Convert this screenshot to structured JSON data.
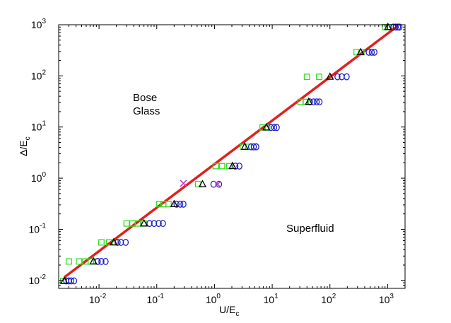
{
  "chart_data": {
    "type": "scatter",
    "xscale": "log",
    "yscale": "log",
    "xlim": [
      0.002,
      2000
    ],
    "ylim": [
      0.007,
      1000
    ],
    "xlabel": "U/E",
    "xlabel_sub": "c",
    "ylabel": "Δ/E",
    "ylabel_sub": "c",
    "xticks": [
      {
        "value": 0.01,
        "base": "10",
        "exp": "-2"
      },
      {
        "value": 0.1,
        "base": "10",
        "exp": "-1"
      },
      {
        "value": 1,
        "base": "10",
        "exp": "0"
      },
      {
        "value": 10,
        "base": "10",
        "exp": "1"
      },
      {
        "value": 100,
        "base": "10",
        "exp": "2"
      },
      {
        "value": 1000,
        "base": "10",
        "exp": "3"
      }
    ],
    "yticks": [
      {
        "value": 0.01,
        "base": "10",
        "exp": "-2"
      },
      {
        "value": 0.1,
        "base": "10",
        "exp": "-1"
      },
      {
        "value": 1,
        "base": "10",
        "exp": "0"
      },
      {
        "value": 10,
        "base": "10",
        "exp": "1"
      },
      {
        "value": 100,
        "base": "10",
        "exp": "2"
      },
      {
        "value": 1000,
        "base": "10",
        "exp": "3"
      }
    ],
    "grid": false,
    "annotations": [
      {
        "line1": "Bose",
        "line2": "Glass",
        "x": 0.25,
        "y": 120
      },
      {
        "line1": "Superfluid",
        "line2": "",
        "x": 5.0,
        "y": 0.08
      }
    ],
    "fit_line": {
      "color": "#e0201b",
      "x": [
        0.0025,
        1500
      ],
      "y": [
        0.0115,
        950
      ]
    },
    "series": [
      {
        "marker": "square",
        "color": "#33dd22",
        "points": [
          [
            0.0024,
            0.0098
          ],
          [
            0.003,
            0.0235
          ],
          [
            0.0045,
            0.0235
          ],
          [
            0.0058,
            0.0235
          ],
          [
            0.0072,
            0.0235
          ],
          [
            0.009,
            0.0235
          ],
          [
            0.011,
            0.0555
          ],
          [
            0.015,
            0.0555
          ],
          [
            0.019,
            0.0555
          ],
          [
            0.03,
            0.13
          ],
          [
            0.038,
            0.13
          ],
          [
            0.047,
            0.13
          ],
          [
            0.06,
            0.13
          ],
          [
            0.11,
            0.31
          ],
          [
            0.13,
            0.31
          ],
          [
            0.16,
            0.31
          ],
          [
            0.52,
            0.76
          ],
          [
            1.05,
            1.72
          ],
          [
            1.35,
            1.72
          ],
          [
            1.8,
            1.72
          ],
          [
            3.1,
            4.1
          ],
          [
            3.9,
            4.1
          ],
          [
            6.8,
            9.8
          ],
          [
            8.2,
            9.8
          ],
          [
            31,
            31
          ],
          [
            38,
            31
          ],
          [
            40,
            96
          ],
          [
            65,
            96
          ],
          [
            290,
            290
          ],
          [
            350,
            290
          ],
          [
            900,
            900
          ],
          [
            1050,
            900
          ]
        ]
      },
      {
        "marker": "circle",
        "color": "#1f1fc8",
        "points": [
          [
            0.0027,
            0.0098
          ],
          [
            0.003,
            0.0098
          ],
          [
            0.0033,
            0.0098
          ],
          [
            0.0037,
            0.0098
          ],
          [
            0.0095,
            0.0235
          ],
          [
            0.011,
            0.0235
          ],
          [
            0.013,
            0.0235
          ],
          [
            0.021,
            0.0555
          ],
          [
            0.024,
            0.0555
          ],
          [
            0.029,
            0.0555
          ],
          [
            0.075,
            0.13
          ],
          [
            0.09,
            0.13
          ],
          [
            0.108,
            0.13
          ],
          [
            0.128,
            0.13
          ],
          [
            0.22,
            0.31
          ],
          [
            0.255,
            0.31
          ],
          [
            0.29,
            0.31
          ],
          [
            0.96,
            0.76
          ],
          [
            1.2,
            0.76
          ],
          [
            2.3,
            1.72
          ],
          [
            2.7,
            1.72
          ],
          [
            4.3,
            4.1
          ],
          [
            4.8,
            4.1
          ],
          [
            5.3,
            4.1
          ],
          [
            9.5,
            9.8
          ],
          [
            10.8,
            9.8
          ],
          [
            12,
            9.8
          ],
          [
            45,
            31
          ],
          [
            52,
            31
          ],
          [
            59,
            31
          ],
          [
            66,
            31
          ],
          [
            135,
            96
          ],
          [
            160,
            96
          ],
          [
            195,
            96
          ],
          [
            470,
            290
          ],
          [
            530,
            290
          ],
          [
            590,
            290
          ],
          [
            1250,
            900
          ],
          [
            1380,
            900
          ],
          [
            1510,
            900
          ],
          [
            1600,
            900
          ]
        ]
      },
      {
        "marker": "triangle",
        "color": "#000000",
        "points": [
          [
            0.0025,
            0.0098
          ],
          [
            0.008,
            0.0235
          ],
          [
            0.018,
            0.0555
          ],
          [
            0.06,
            0.13
          ],
          [
            0.2,
            0.31
          ],
          [
            0.62,
            0.76
          ],
          [
            2.05,
            1.72
          ],
          [
            3.35,
            4.1
          ],
          [
            7.9,
            9.8
          ],
          [
            43,
            31
          ],
          [
            100,
            96
          ],
          [
            340,
            290
          ],
          [
            1010,
            900
          ]
        ]
      },
      {
        "marker": "x",
        "color": "#c040c0",
        "points": [
          [
            0.29,
            0.79
          ],
          [
            1.13,
            0.76
          ]
        ]
      }
    ]
  }
}
